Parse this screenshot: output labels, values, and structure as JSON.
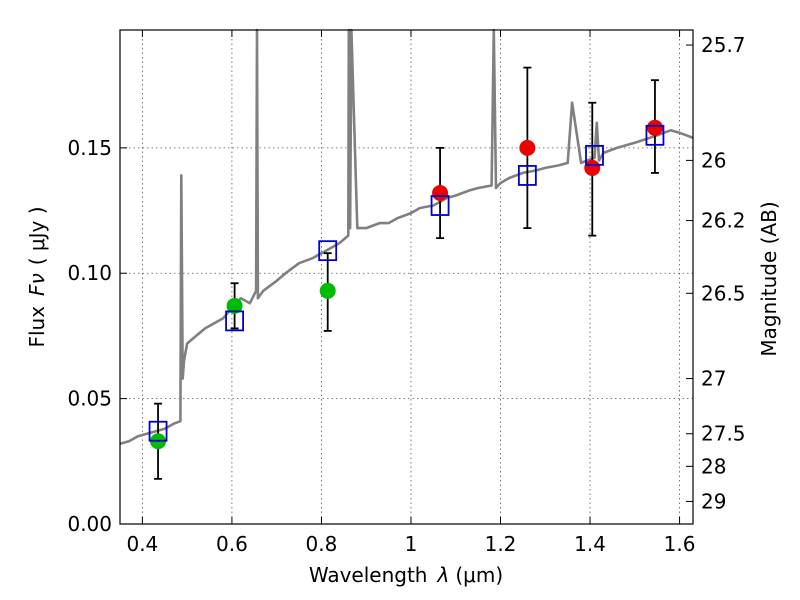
{
  "chart_data": {
    "type": "scatter",
    "xlabel": "Wavelength",
    "xlabel_symbol": "λ",
    "xlabel_unit": "(μm)",
    "ylabel": "Flux",
    "ylabel_symbol": "Fν",
    "ylabel_unit": "( μJy )",
    "y2label": "Magnitude (AB)",
    "xlim": [
      0.35,
      1.63
    ],
    "ylim": [
      0.0,
      0.197
    ],
    "grid": true,
    "x_ticks": [
      0.4,
      0.6,
      0.8,
      1.0,
      1.2,
      1.4,
      1.6
    ],
    "x_tick_labels": [
      "0.4",
      "0.6",
      "0.8",
      "1",
      "1.2",
      "1.4",
      "1.6"
    ],
    "y_ticks": [
      0.0,
      0.05,
      0.1,
      0.15
    ],
    "y_tick_labels": [
      "0.00",
      "0.05",
      "0.10",
      "0.15"
    ],
    "y2_ticks": [
      {
        "label": "25.7",
        "flux": 0.191
      },
      {
        "label": "26",
        "flux": 0.145
      },
      {
        "label": "26.2",
        "flux": 0.121
      },
      {
        "label": "26.5",
        "flux": 0.092
      },
      {
        "label": "27",
        "flux": 0.058
      },
      {
        "label": "27.5",
        "flux": 0.036
      },
      {
        "label": "28",
        "flux": 0.023
      },
      {
        "label": "29",
        "flux": 0.009
      }
    ],
    "colors": {
      "spectrum": "#808080",
      "green": "#00bb00",
      "red": "#ee0000",
      "model": "#0000cc",
      "errorbar": "#000000",
      "grid": "#555555"
    },
    "series": [
      {
        "kind": "model-spectrum",
        "x": [
          0.35,
          0.37,
          0.39,
          0.41,
          0.43,
          0.45,
          0.47,
          0.485,
          0.487,
          0.49,
          0.493,
          0.5,
          0.52,
          0.54,
          0.56,
          0.58,
          0.6,
          0.62,
          0.64,
          0.654,
          0.656,
          0.658,
          0.67,
          0.7,
          0.72,
          0.75,
          0.78,
          0.8,
          0.82,
          0.84,
          0.86,
          0.861,
          0.864,
          0.867,
          0.88,
          0.9,
          0.93,
          0.95,
          0.97,
          1.0,
          1.02,
          1.05,
          1.08,
          1.1,
          1.13,
          1.15,
          1.18,
          1.185,
          1.19,
          1.2,
          1.22,
          1.25,
          1.28,
          1.3,
          1.33,
          1.35,
          1.36,
          1.38,
          1.41,
          1.415,
          1.42,
          1.43,
          1.46,
          1.5,
          1.55,
          1.58,
          1.6,
          1.63
        ],
        "values": [
          0.032,
          0.033,
          0.035,
          0.036,
          0.037,
          0.038,
          0.04,
          0.041,
          0.139,
          0.058,
          0.065,
          0.072,
          0.075,
          0.078,
          0.08,
          0.082,
          0.086,
          0.09,
          0.088,
          0.093,
          0.2,
          0.09,
          0.093,
          0.097,
          0.1,
          0.104,
          0.106,
          0.108,
          0.11,
          0.112,
          0.115,
          0.2,
          0.118,
          0.2,
          0.118,
          0.118,
          0.12,
          0.12,
          0.122,
          0.124,
          0.126,
          0.127,
          0.13,
          0.131,
          0.133,
          0.134,
          0.135,
          0.2,
          0.134,
          0.136,
          0.138,
          0.14,
          0.141,
          0.142,
          0.143,
          0.144,
          0.168,
          0.144,
          0.146,
          0.16,
          0.145,
          0.148,
          0.15,
          0.152,
          0.155,
          0.157,
          0.156,
          0.154
        ]
      },
      {
        "kind": "observed-optical",
        "x": [
          0.435,
          0.606,
          0.814
        ],
        "values": [
          0.033,
          0.087,
          0.093
        ],
        "yerr_low": [
          0.018,
          0.078,
          0.077
        ],
        "yerr_high": [
          0.048,
          0.096,
          0.108
        ]
      },
      {
        "kind": "observed-nir",
        "x": [
          1.065,
          1.26,
          1.405,
          1.545
        ],
        "values": [
          0.132,
          0.15,
          0.142,
          0.158
        ],
        "yerr_low": [
          0.114,
          0.118,
          0.115,
          0.14
        ],
        "yerr_high": [
          0.15,
          0.182,
          0.168,
          0.177
        ]
      },
      {
        "kind": "model-photometry",
        "x": [
          0.435,
          0.606,
          0.814,
          1.065,
          1.26,
          1.41,
          1.545
        ],
        "values": [
          0.037,
          0.081,
          0.109,
          0.127,
          0.139,
          0.147,
          0.155
        ]
      }
    ]
  }
}
